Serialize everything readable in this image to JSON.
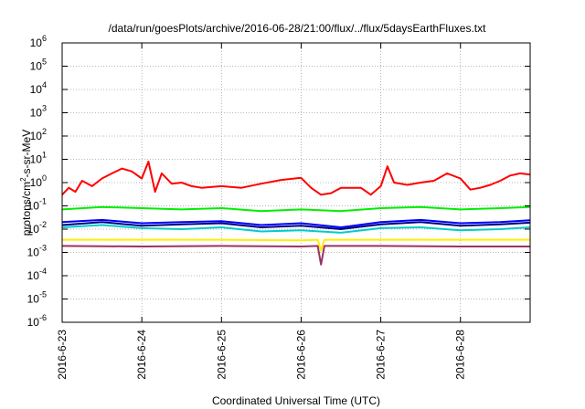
{
  "chart_data": {
    "type": "line",
    "title": "/data/run/goesPlots/archive/2016-06-28/21:00/flux/../flux/5daysEarthFluxes.txt",
    "xlabel": "Coordinated Universal Time (UTC)",
    "ylabel_parts": [
      "protons/cm",
      "2",
      "-s-sr-MeV"
    ],
    "yscale": "log",
    "ylim": [
      1e-06,
      1000000.0
    ],
    "xlim": [
      "2016-06-23",
      "2016-06-28 21:00"
    ],
    "grid": true,
    "y_ticks": [
      {
        "base": "10",
        "exp": "-6",
        "value": 1e-06
      },
      {
        "base": "10",
        "exp": "-5",
        "value": 1e-05
      },
      {
        "base": "10",
        "exp": "-4",
        "value": 0.0001
      },
      {
        "base": "10",
        "exp": "-3",
        "value": 0.001
      },
      {
        "base": "10",
        "exp": "-2",
        "value": 0.01
      },
      {
        "base": "10",
        "exp": "-1",
        "value": 0.1
      },
      {
        "base": "10",
        "exp": "0",
        "value": 1
      },
      {
        "base": "10",
        "exp": "1",
        "value": 10
      },
      {
        "base": "10",
        "exp": "2",
        "value": 100
      },
      {
        "base": "10",
        "exp": "3",
        "value": 1000
      },
      {
        "base": "10",
        "exp": "4",
        "value": 10000
      },
      {
        "base": "10",
        "exp": "5",
        "value": 100000
      },
      {
        "base": "10",
        "exp": "6",
        "value": 1000000
      }
    ],
    "x_ticks": [
      "2016-6-23",
      "2016-6-24",
      "2016-6-25",
      "2016-6-26",
      "2016-6-27",
      "2016-6-28"
    ],
    "series": [
      {
        "color": "#ff0000",
        "x": [
          "2016-06-23 00:00",
          "2016-06-23 02:00",
          "2016-06-23 04:00",
          "2016-06-23 06:00",
          "2016-06-23 09:00",
          "2016-06-23 12:00",
          "2016-06-23 15:00",
          "2016-06-23 18:00",
          "2016-06-23 21:00",
          "2016-06-24 00:00",
          "2016-06-24 02:00",
          "2016-06-24 04:00",
          "2016-06-24 06:00",
          "2016-06-24 09:00",
          "2016-06-24 12:00",
          "2016-06-24 15:00",
          "2016-06-24 18:00",
          "2016-06-25 00:00",
          "2016-06-25 06:00",
          "2016-06-25 12:00",
          "2016-06-25 18:00",
          "2016-06-26 00:00",
          "2016-06-26 03:00",
          "2016-06-26 06:00",
          "2016-06-26 09:00",
          "2016-06-26 12:00",
          "2016-06-26 15:00",
          "2016-06-26 18:00",
          "2016-06-26 21:00",
          "2016-06-27 00:00",
          "2016-06-27 02:00",
          "2016-06-27 04:00",
          "2016-06-27 08:00",
          "2016-06-27 12:00",
          "2016-06-27 16:00",
          "2016-06-27 20:00",
          "2016-06-28 00:00",
          "2016-06-28 03:00",
          "2016-06-28 06:00",
          "2016-06-28 09:00",
          "2016-06-28 12:00",
          "2016-06-28 15:00",
          "2016-06-28 18:00",
          "2016-06-28 21:00"
        ],
        "y": [
          0.3,
          0.6,
          0.4,
          1.2,
          0.7,
          1.5,
          2.5,
          4.0,
          3.0,
          1.5,
          8.0,
          0.4,
          2.5,
          0.9,
          1.0,
          0.7,
          0.6,
          0.7,
          0.6,
          0.9,
          1.3,
          1.6,
          0.6,
          0.3,
          0.35,
          0.6,
          0.6,
          0.6,
          0.3,
          0.7,
          5.0,
          1.0,
          0.8,
          1.0,
          1.2,
          2.5,
          1.5,
          0.5,
          0.6,
          0.8,
          1.2,
          2.0,
          2.5,
          2.2
        ]
      },
      {
        "color": "#00ee00",
        "x": [
          "2016-06-23 00:00",
          "2016-06-23 12:00",
          "2016-06-24 00:00",
          "2016-06-24 12:00",
          "2016-06-25 00:00",
          "2016-06-25 12:00",
          "2016-06-26 00:00",
          "2016-06-26 12:00",
          "2016-06-27 00:00",
          "2016-06-27 12:00",
          "2016-06-28 00:00",
          "2016-06-28 12:00",
          "2016-06-28 21:00"
        ],
        "y": [
          0.07,
          0.09,
          0.08,
          0.07,
          0.08,
          0.06,
          0.07,
          0.06,
          0.08,
          0.09,
          0.07,
          0.08,
          0.09
        ]
      },
      {
        "color": "#00cccc",
        "x": [
          "2016-06-23 00:00",
          "2016-06-23 12:00",
          "2016-06-24 00:00",
          "2016-06-24 12:00",
          "2016-06-25 00:00",
          "2016-06-25 12:00",
          "2016-06-26 00:00",
          "2016-06-26 12:00",
          "2016-06-27 00:00",
          "2016-06-27 12:00",
          "2016-06-28 00:00",
          "2016-06-28 12:00",
          "2016-06-28 21:00"
        ],
        "y": [
          0.012,
          0.015,
          0.011,
          0.01,
          0.012,
          0.008,
          0.009,
          0.007,
          0.011,
          0.012,
          0.009,
          0.01,
          0.012
        ]
      },
      {
        "color": "#0000ff",
        "x": [
          "2016-06-23 00:00",
          "2016-06-23 12:00",
          "2016-06-24 00:00",
          "2016-06-24 12:00",
          "2016-06-25 00:00",
          "2016-06-25 12:00",
          "2016-06-26 00:00",
          "2016-06-26 12:00",
          "2016-06-27 00:00",
          "2016-06-27 12:00",
          "2016-06-28 00:00",
          "2016-06-28 12:00",
          "2016-06-28 21:00"
        ],
        "y": [
          0.02,
          0.025,
          0.018,
          0.02,
          0.022,
          0.015,
          0.018,
          0.012,
          0.02,
          0.025,
          0.018,
          0.02,
          0.024
        ]
      },
      {
        "color": "#000080",
        "x": [
          "2016-06-23 00:00",
          "2016-06-23 12:00",
          "2016-06-24 00:00",
          "2016-06-24 12:00",
          "2016-06-25 00:00",
          "2016-06-25 12:00",
          "2016-06-26 00:00",
          "2016-06-26 12:00",
          "2016-06-27 00:00",
          "2016-06-27 12:00",
          "2016-06-28 00:00",
          "2016-06-28 12:00",
          "2016-06-28 21:00"
        ],
        "y": [
          0.015,
          0.02,
          0.014,
          0.016,
          0.018,
          0.012,
          0.014,
          0.01,
          0.016,
          0.02,
          0.014,
          0.016,
          0.019
        ]
      },
      {
        "color": "#ffee00",
        "x": [
          "2016-06-23 00:00",
          "2016-06-24 00:00",
          "2016-06-25 00:00",
          "2016-06-26 00:00",
          "2016-06-26 05:00",
          "2016-06-26 06:00",
          "2016-06-26 07:00",
          "2016-06-27 00:00",
          "2016-06-28 00:00",
          "2016-06-28 21:00"
        ],
        "y": [
          0.0035,
          0.0035,
          0.0035,
          0.0033,
          0.0035,
          0.0012,
          0.0035,
          0.0035,
          0.0035,
          0.0035
        ]
      },
      {
        "color": "#993366",
        "x": [
          "2016-06-23 00:00",
          "2016-06-24 00:00",
          "2016-06-25 00:00",
          "2016-06-26 00:00",
          "2016-06-26 05:00",
          "2016-06-26 06:00",
          "2016-06-26 07:00",
          "2016-06-27 00:00",
          "2016-06-28 00:00",
          "2016-06-28 21:00"
        ],
        "y": [
          0.0019,
          0.0018,
          0.0019,
          0.0018,
          0.0019,
          0.0003,
          0.0019,
          0.0019,
          0.0018,
          0.0018
        ]
      }
    ]
  }
}
